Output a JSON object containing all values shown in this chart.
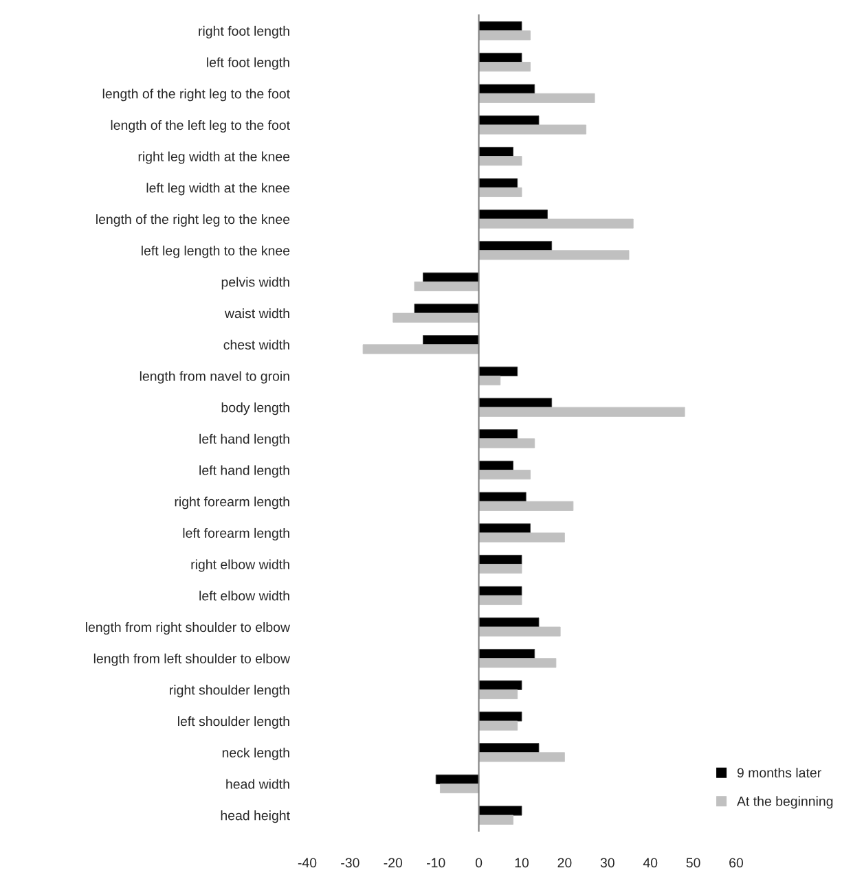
{
  "chart_data": {
    "type": "bar",
    "orientation": "horizontal",
    "categories": [
      "right foot length",
      "left foot length",
      "length of the right leg to the foot",
      "length of the left leg to the foot",
      "right leg width at the knee",
      "left leg width at the knee",
      "length of the right leg to the knee",
      "left leg length to the knee",
      "pelvis width",
      "waist width",
      "chest width",
      "length from navel to groin",
      "body length",
      "left hand length",
      "left hand length",
      "right forearm length",
      "left forearm length",
      "right elbow width",
      "left elbow width",
      "length from right shoulder to elbow",
      "length from left shoulder to elbow",
      "right shoulder length",
      "left shoulder length",
      "neck length",
      "head width",
      "head height"
    ],
    "series": [
      {
        "name": "9 months later",
        "color": "#000000",
        "values": [
          10,
          10,
          13,
          14,
          8,
          9,
          16,
          17,
          -13,
          -15,
          -13,
          9,
          17,
          9,
          8,
          11,
          12,
          10,
          10,
          14,
          13,
          10,
          10,
          14,
          -10,
          10
        ]
      },
      {
        "name": "At the beginning",
        "color": "#c0c0c0",
        "values": [
          12,
          12,
          27,
          25,
          10,
          10,
          36,
          35,
          -15,
          -20,
          -27,
          5,
          48,
          13,
          12,
          22,
          20,
          10,
          10,
          19,
          18,
          9,
          9,
          20,
          -9,
          8
        ]
      }
    ],
    "xlim": [
      -40,
      60
    ],
    "xticks": [
      -40,
      -30,
      -20,
      -10,
      0,
      10,
      20,
      30,
      40,
      50,
      60
    ],
    "legend": "bottom right"
  }
}
